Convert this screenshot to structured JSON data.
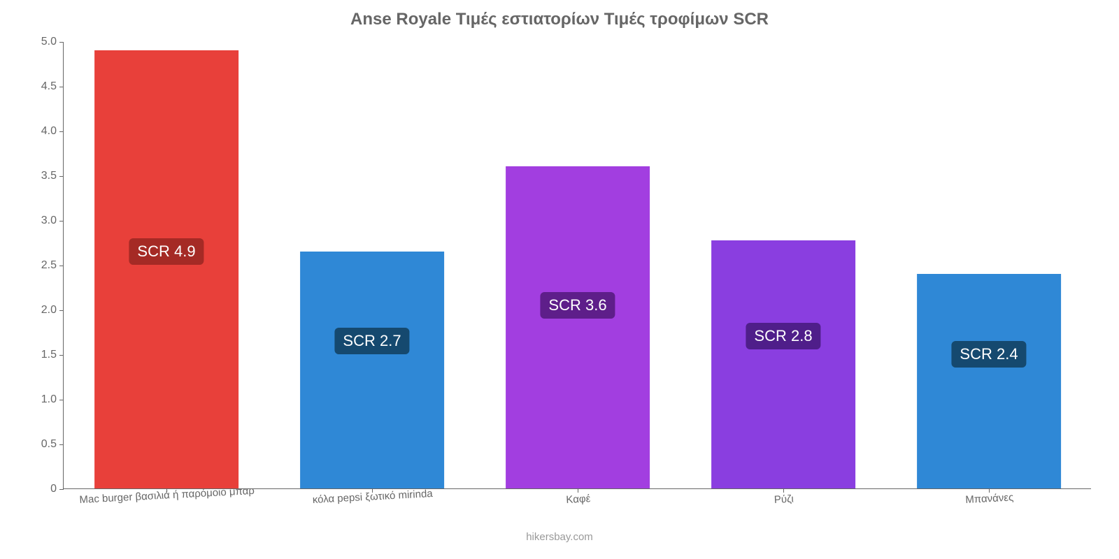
{
  "chart": {
    "type": "bar",
    "title": "Anse Royale Τιμές εστιατορίων Τιμές τροφίμων SCR",
    "title_fontsize": 24,
    "title_color": "#666666",
    "background_color": "#ffffff",
    "axis_color": "#666666",
    "tick_label_color": "#666666",
    "tick_label_fontsize": 16,
    "xlabel_fontsize": 15,
    "xlabel_rotate_deg": -3,
    "ylim": [
      0,
      5.0
    ],
    "yticks": [
      0,
      0.5,
      1.0,
      1.5,
      2.0,
      2.5,
      3.0,
      3.5,
      4.0,
      4.5,
      5.0
    ],
    "ytick_labels": [
      "0",
      "0.5",
      "1.0",
      "1.5",
      "2.0",
      "2.5",
      "3.0",
      "3.5",
      "4.0",
      "4.5",
      "5.0"
    ],
    "bar_width_ratio": 0.7,
    "categories": [
      "Mac burger βασιλιά ή παρόμοιο μπαρ",
      "κόλα pepsi ξωτικό mirinda",
      "Καφέ",
      "Ρύζι",
      "Μπανάνες"
    ],
    "values": [
      4.9,
      2.65,
      3.6,
      2.77,
      2.4
    ],
    "badge_texts": [
      "SCR 4.9",
      "SCR 2.7",
      "SCR 3.6",
      "SCR 2.8",
      "SCR 2.4"
    ],
    "bar_colors": [
      "#e8403a",
      "#2f88d6",
      "#a23ee0",
      "#8a3ee0",
      "#2f88d6"
    ],
    "badge_bg_colors": [
      "#a52a25",
      "#15496f",
      "#5e1e8a",
      "#4f1e8a",
      "#15496f"
    ],
    "badge_fontsize": 22,
    "badge_y_value": [
      2.65,
      1.65,
      2.05,
      1.7,
      1.5
    ],
    "attribution": "hikersbay.com",
    "attribution_color": "#999999",
    "attribution_fontsize": 15
  }
}
